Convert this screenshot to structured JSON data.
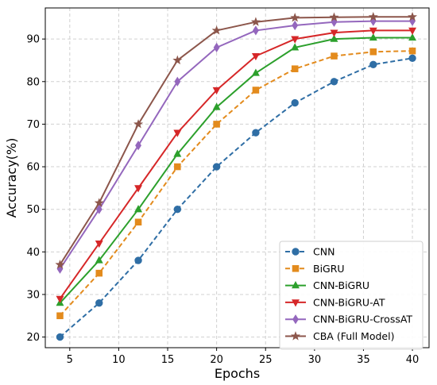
{
  "chart_data": {
    "type": "line",
    "title": "",
    "xlabel": "Epochs",
    "ylabel": "Accuracy(%)",
    "xlim": [
      2.5,
      41.7
    ],
    "ylim": [
      17.5,
      97.3
    ],
    "xticks": [
      5,
      10,
      15,
      20,
      25,
      30,
      35,
      40
    ],
    "yticks": [
      20,
      30,
      40,
      50,
      60,
      70,
      80,
      90
    ],
    "grid": true,
    "legend_position": "bottom-right",
    "x": [
      4,
      8,
      12,
      16,
      20,
      24,
      28,
      32,
      36,
      40
    ],
    "series": [
      {
        "name": "CNN",
        "color": "#2f6ea5",
        "dash": "dashed",
        "marker": "circle",
        "values": [
          20,
          28,
          38,
          50,
          60,
          68,
          75,
          80,
          84,
          85.5
        ]
      },
      {
        "name": "BiGRU",
        "color": "#e38b1d",
        "dash": "dashed",
        "marker": "square",
        "values": [
          25,
          35,
          47,
          60,
          70,
          78,
          83,
          86,
          87,
          87.2
        ]
      },
      {
        "name": "CNN-BiGRU",
        "color": "#2ca02c",
        "dash": "solid",
        "marker": "triangle-up",
        "values": [
          28,
          38,
          50,
          63,
          74,
          82,
          88,
          90,
          90.3,
          90.3
        ]
      },
      {
        "name": "CNN-BiGRU-AT",
        "color": "#d62728",
        "dash": "solid",
        "marker": "triangle-down",
        "values": [
          29,
          42,
          55,
          68,
          78,
          86,
          90,
          91.5,
          92,
          92
        ]
      },
      {
        "name": "CNN-BiGRU-CrossAT",
        "color": "#9467bd",
        "dash": "solid",
        "marker": "diamond",
        "values": [
          36,
          50,
          65,
          80,
          88,
          92,
          93.2,
          94,
          94.2,
          94.2
        ]
      },
      {
        "name": "CBA (Full Model)",
        "color": "#8c564b",
        "dash": "solid",
        "marker": "star",
        "values": [
          37,
          51.5,
          70,
          85,
          92,
          94,
          95,
          95.1,
          95.2,
          95.2
        ]
      }
    ]
  }
}
